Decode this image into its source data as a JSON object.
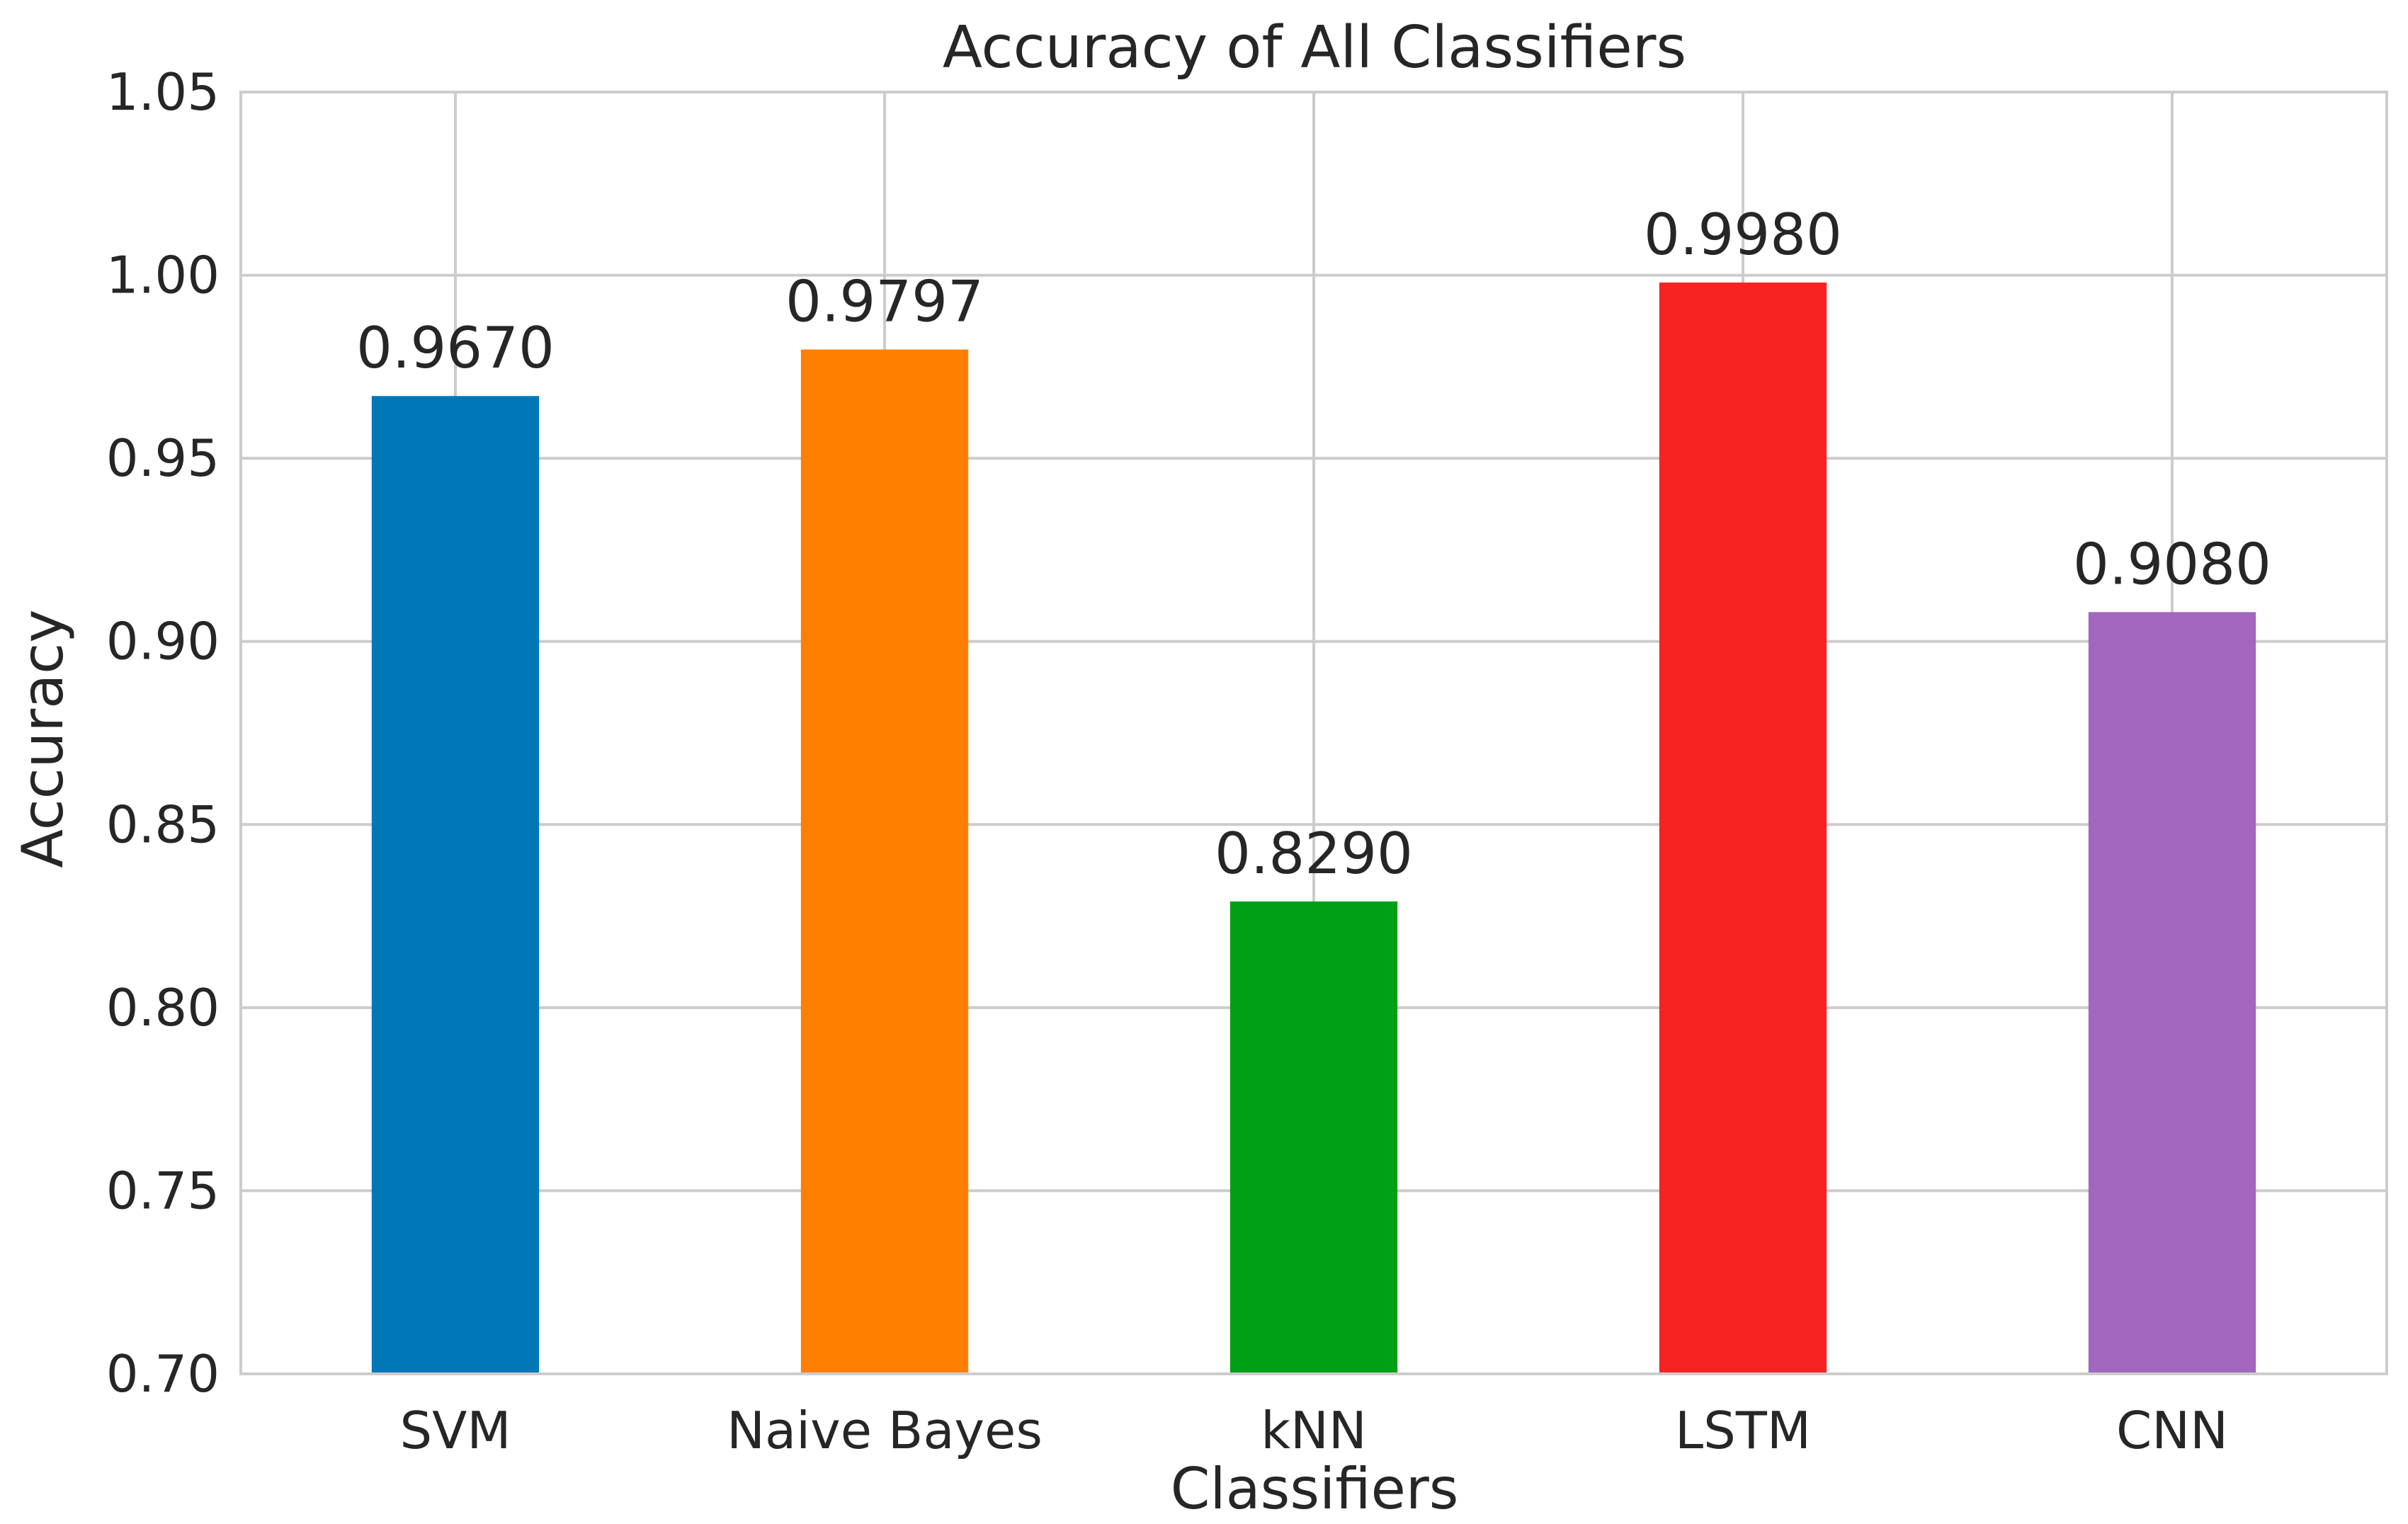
{
  "chart_data": {
    "type": "bar",
    "title": "Accuracy of All Classifiers",
    "xlabel": "Classifiers",
    "ylabel": "Accuracy",
    "categories": [
      "SVM",
      "Naive Bayes",
      "kNN",
      "LSTM",
      "CNN"
    ],
    "values": [
      0.967,
      0.9797,
      0.829,
      0.998,
      0.908
    ],
    "value_labels": [
      "0.9670",
      "0.9797",
      "0.8290",
      "0.9980",
      "0.9080"
    ],
    "colors": [
      "#0077b7",
      "#ff7f00",
      "#00a014",
      "#f72323",
      "#a266be"
    ],
    "ylim": [
      0.7,
      1.05
    ],
    "yticks": [
      0.7,
      0.75,
      0.8,
      0.85,
      0.9,
      0.95,
      1.0,
      1.05
    ],
    "ytick_labels": [
      "0.70",
      "0.75",
      "0.80",
      "0.85",
      "0.90",
      "0.95",
      "1.00",
      "1.05"
    ],
    "grid": true,
    "legend": false
  }
}
